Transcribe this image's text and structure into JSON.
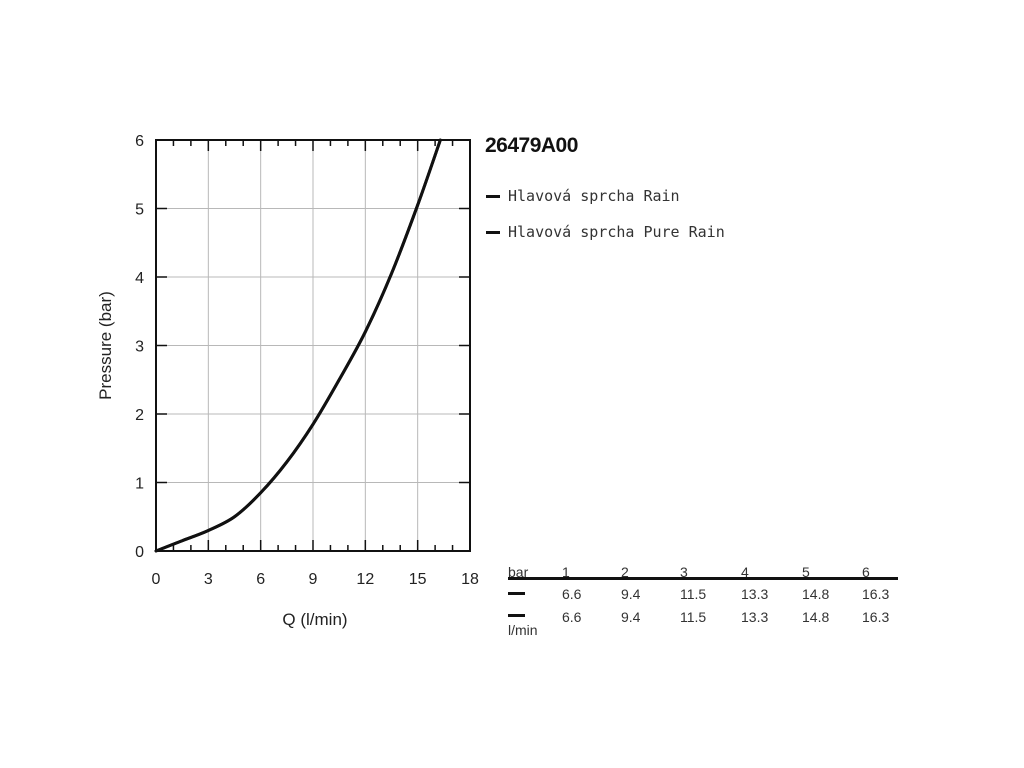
{
  "chart_data": {
    "type": "line",
    "title": "26479A00",
    "xlabel": "Q (l/min)",
    "ylabel": "Pressure (bar)",
    "xlim": [
      0,
      18
    ],
    "ylim": [
      0,
      6
    ],
    "xticks": [
      0,
      3,
      6,
      9,
      12,
      15,
      18
    ],
    "yticks": [
      0,
      1,
      2,
      3,
      4,
      5,
      6
    ],
    "grid": true,
    "legend_position": "right",
    "series": [
      {
        "name": "Hlavová sprcha Rain",
        "color": "#111111",
        "x": [
          0,
          1.5,
          3,
          4.5,
          6,
          7.5,
          9,
          10.5,
          12,
          13.5,
          15,
          16.3
        ],
        "y": [
          0,
          0.15,
          0.3,
          0.5,
          0.85,
          1.3,
          1.85,
          2.5,
          3.2,
          4.05,
          5.05,
          6.0
        ]
      },
      {
        "name": "Hlavová sprcha Pure Rain",
        "color": "#111111",
        "x": [
          0,
          1.5,
          3,
          4.5,
          6,
          7.5,
          9,
          10.5,
          12,
          13.5,
          15,
          16.3
        ],
        "y": [
          0,
          0.15,
          0.3,
          0.5,
          0.85,
          1.3,
          1.85,
          2.5,
          3.2,
          4.05,
          5.05,
          6.0
        ]
      }
    ]
  },
  "table": {
    "header_label": "bar",
    "unit_label": "l/min",
    "columns": [
      "1",
      "2",
      "3",
      "4",
      "5",
      "6"
    ],
    "rows": [
      [
        "6.6",
        "9.4",
        "11.5",
        "13.3",
        "14.8",
        "16.3"
      ],
      [
        "6.6",
        "9.4",
        "11.5",
        "13.3",
        "14.8",
        "16.3"
      ]
    ]
  }
}
